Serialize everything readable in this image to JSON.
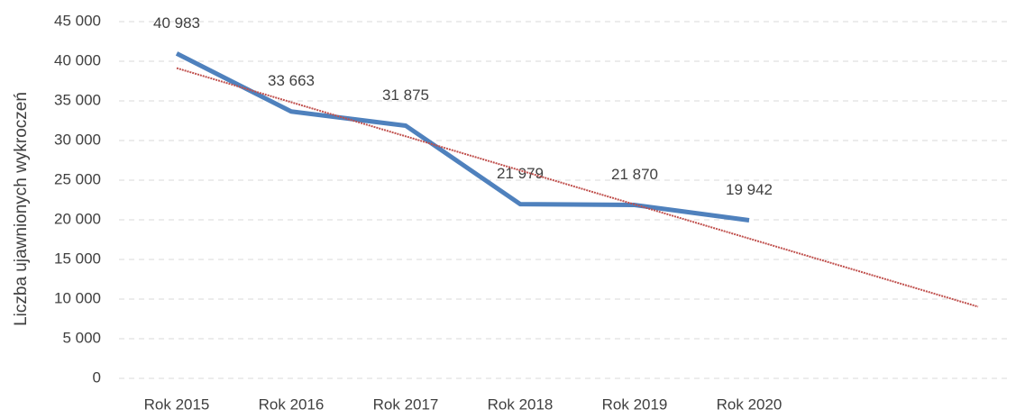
{
  "chart_data": {
    "type": "line",
    "y_label": "Liczba ujawnionych wykroczeń",
    "categories": [
      "Rok 2015",
      "Rok 2016",
      "Rok 2017",
      "Rok 2018",
      "Rok 2019",
      "Rok 2020",
      null,
      null
    ],
    "series": [
      {
        "color": "#4f81bd",
        "values": [
          40983,
          33663,
          31875,
          21979,
          21870,
          19942,
          null,
          null
        ],
        "value_labels": [
          "40 983",
          "33 663",
          "31 875",
          "21 979",
          "21 870",
          "19 942",
          null,
          null
        ]
      }
    ],
    "trendline": {
      "color": "#c0504d",
      "values": [
        39134,
        34835,
        30535,
        26236,
        21936,
        17637,
        13338,
        9038
      ]
    },
    "ylim": [
      0,
      45000
    ],
    "yticks": [
      0,
      {
        "value": 5000,
        "label": "5 000"
      },
      {
        "value": 10000,
        "label": "10 000"
      },
      {
        "value": 15000,
        "label": "15 000"
      },
      {
        "value": 20000,
        "label": "20 000"
      },
      {
        "value": 25000,
        "label": "25 000"
      },
      {
        "value": 30000,
        "label": "30 000"
      },
      {
        "value": 35000,
        "label": "35 000"
      },
      {
        "value": 40000,
        "label": "40 000"
      },
      {
        "value": 45000,
        "label": "45 000"
      }
    ],
    "grid": true
  }
}
